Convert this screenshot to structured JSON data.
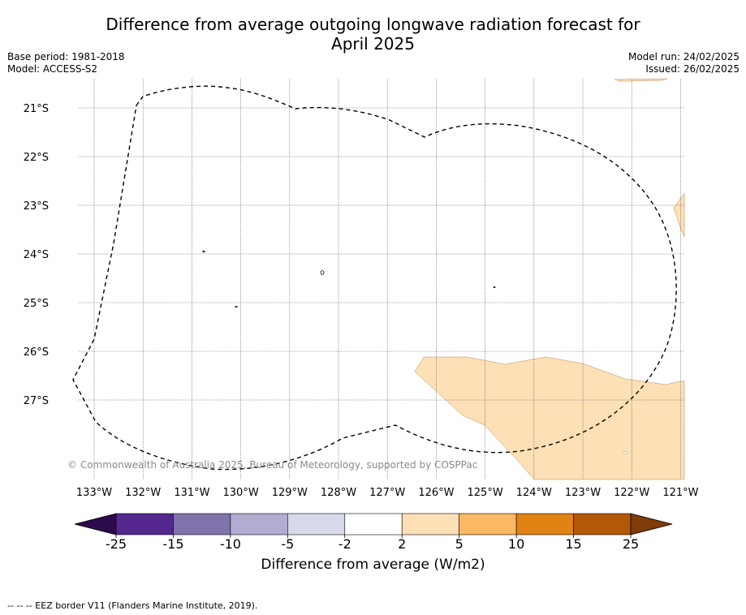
{
  "header": {
    "title_line1": "Difference from average outgoing longwave radiation forecast for",
    "title_line2": "April 2025",
    "base_period": "Base period: 1981-2018",
    "model": "Model: ACCESS-S2",
    "model_run": "Model run: 24/02/2025",
    "issued": "Issued: 26/02/2025"
  },
  "map": {
    "lat_labels": [
      "21°S",
      "22°S",
      "23°S",
      "24°S",
      "25°S",
      "26°S",
      "27°S"
    ],
    "lon_labels": [
      "133°W",
      "132°W",
      "131°W",
      "130°W",
      "129°W",
      "128°W",
      "127°W",
      "126°W",
      "125°W",
      "124°W",
      "123°W",
      "122°W",
      "121°W"
    ],
    "copyright": "© Commonwealth of Australia 2025, Bureau of Meteorology, supported by COSPPac",
    "fill_color_2_5": "#fde0b6",
    "eez_line_color": "#000000"
  },
  "colorbar": {
    "ticks": [
      "-25",
      "-15",
      "-10",
      "-5",
      "-2",
      "2",
      "5",
      "10",
      "15",
      "25"
    ],
    "colors": [
      "#2d0a4c",
      "#54278f",
      "#8073ac",
      "#b2abd2",
      "#d8daeb",
      "#ffffff",
      "#fee0b6",
      "#fdb863",
      "#e08214",
      "#b35806",
      "#7f3b08"
    ],
    "label": "Difference from average (W/m2)"
  },
  "footer": {
    "legend": "--  --  -- EEZ border V11 (Flanders Marine Institute, 2019)."
  }
}
